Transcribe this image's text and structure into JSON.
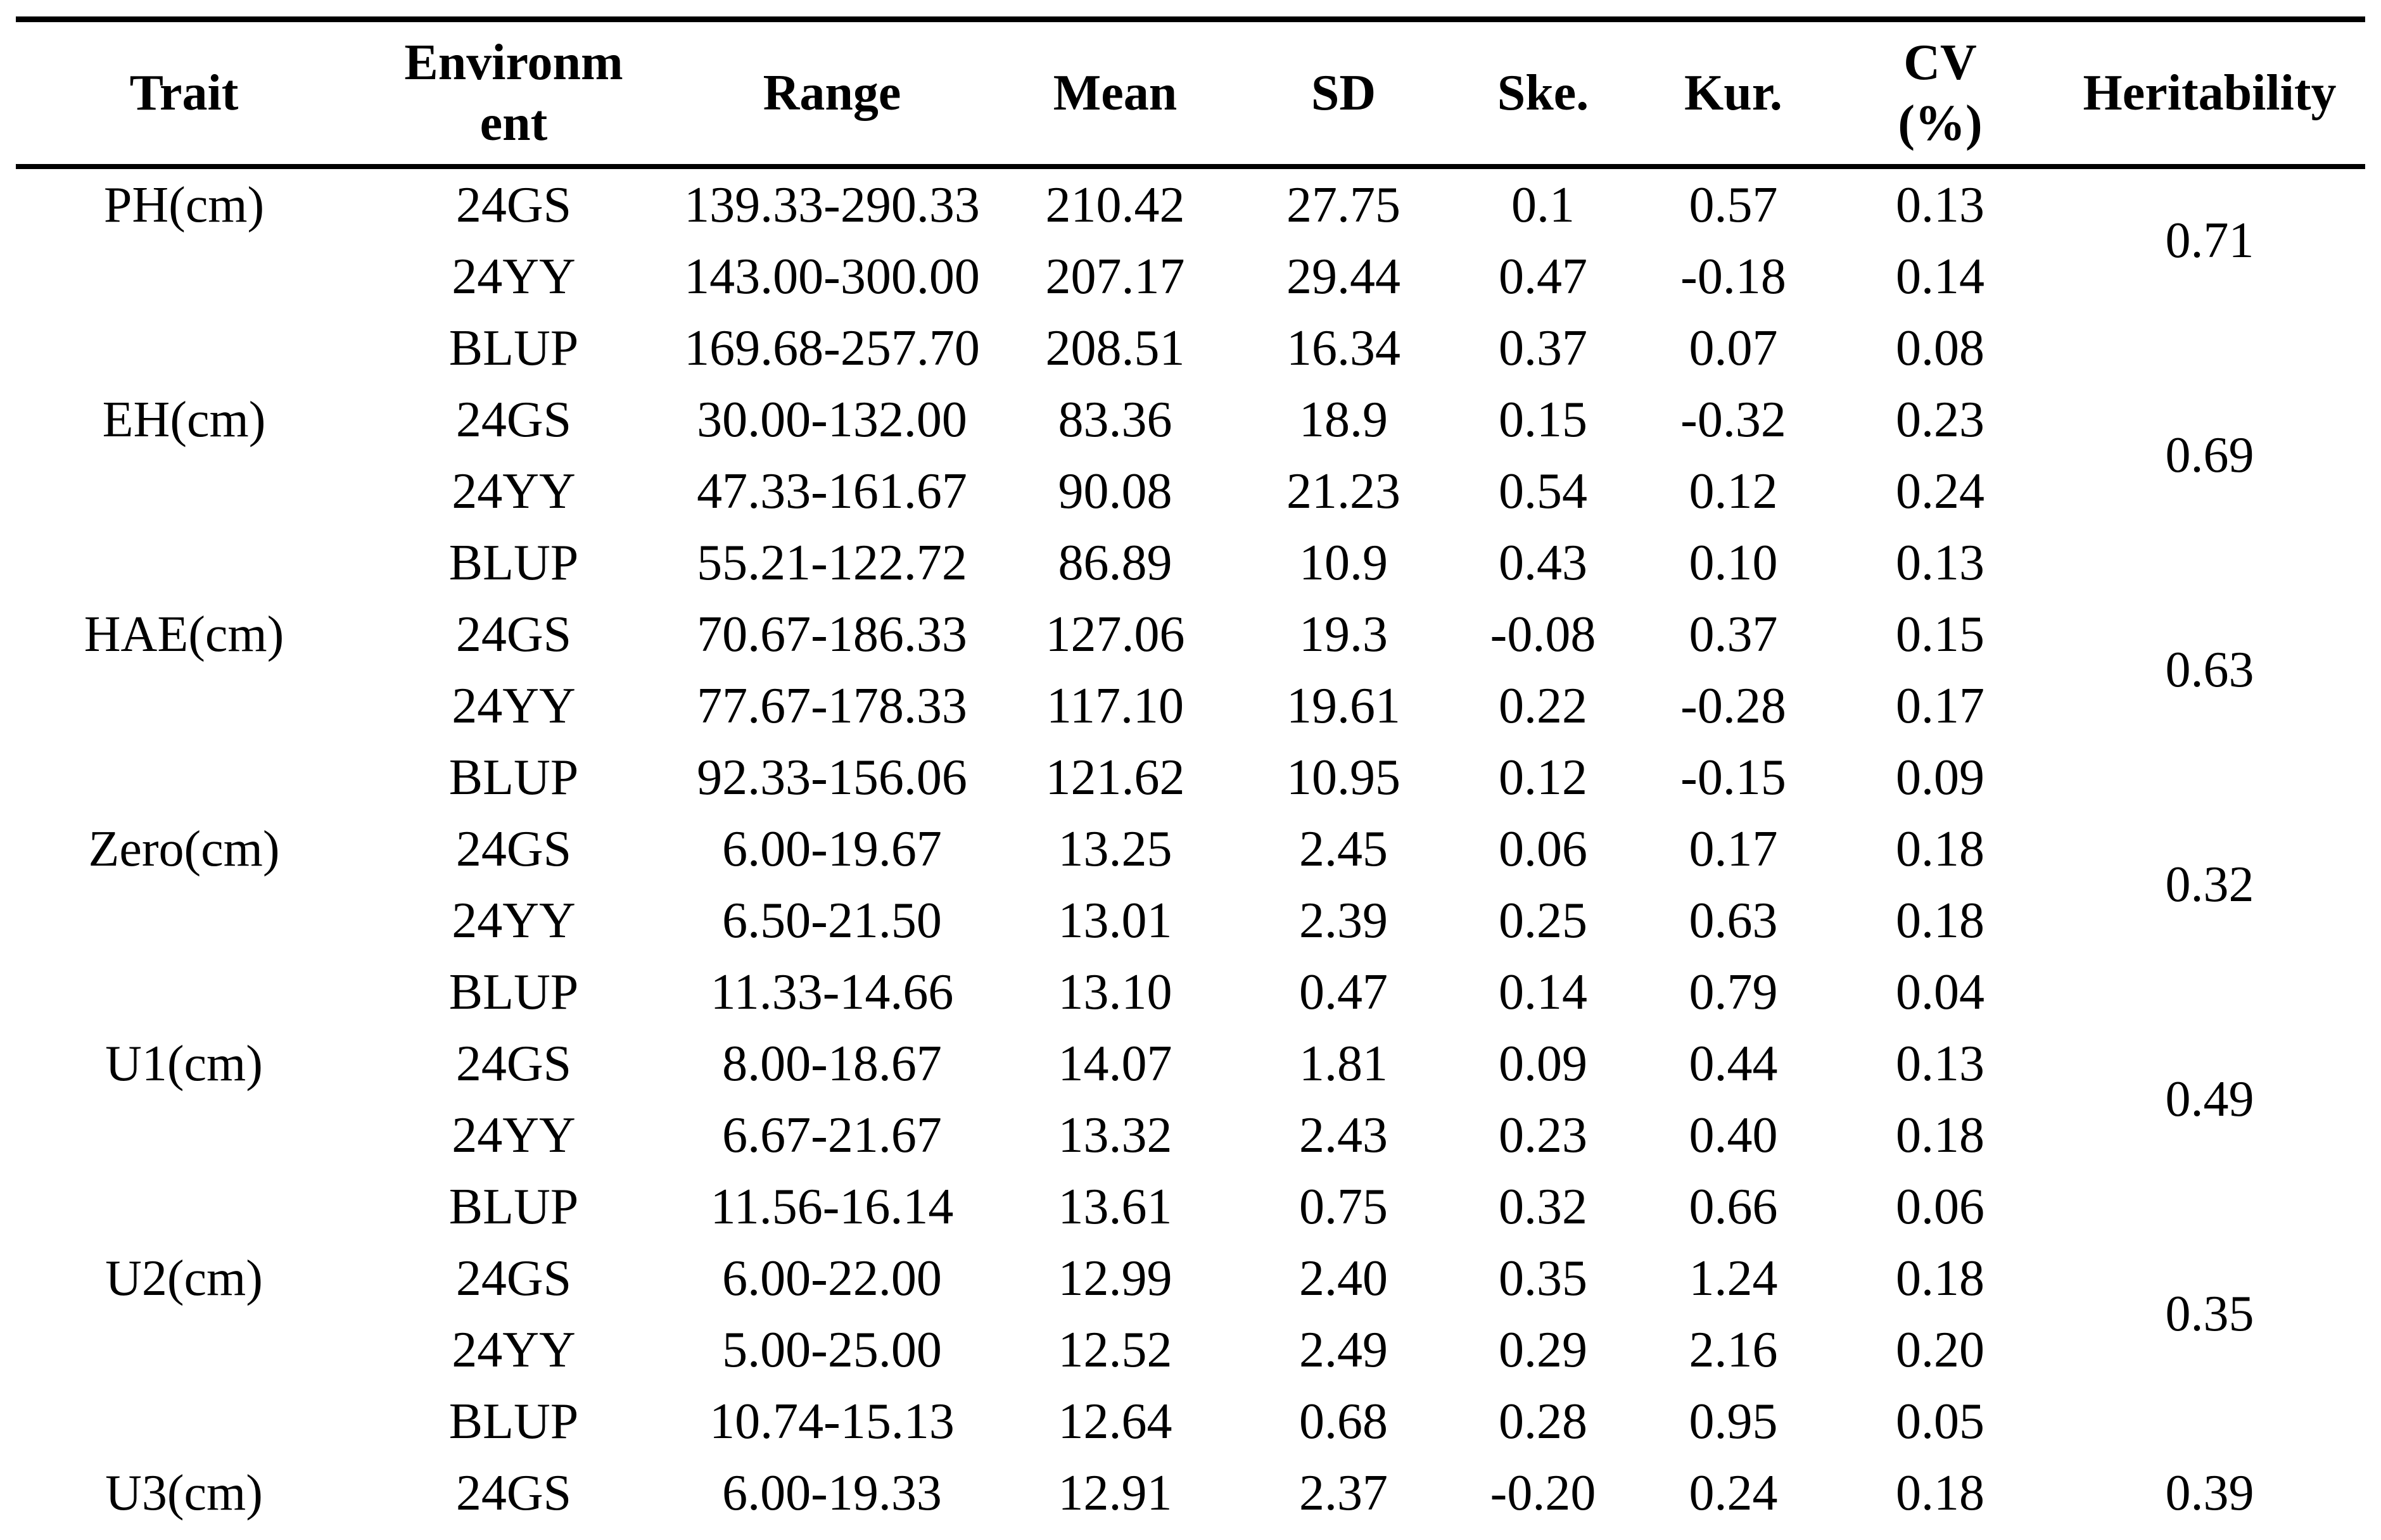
{
  "colors": {
    "background": "#ffffff",
    "text": "#000000",
    "rule": "#000000"
  },
  "table": {
    "headers": [
      {
        "id": "trait",
        "lines": [
          "Trait"
        ]
      },
      {
        "id": "environment",
        "lines": [
          "Environm",
          "ent"
        ]
      },
      {
        "id": "range",
        "lines": [
          "Range"
        ]
      },
      {
        "id": "mean",
        "lines": [
          "Mean"
        ]
      },
      {
        "id": "sd",
        "lines": [
          "SD"
        ]
      },
      {
        "id": "ske",
        "lines": [
          "Ske."
        ]
      },
      {
        "id": "kur",
        "lines": [
          "Kur."
        ]
      },
      {
        "id": "cv",
        "lines": [
          "CV",
          "(%)"
        ]
      },
      {
        "id": "heritability",
        "lines": [
          "Heritability"
        ]
      }
    ],
    "groups": [
      {
        "trait": "PH(cm)",
        "heritability": "0.71",
        "rows": [
          {
            "env": "24GS",
            "range": "139.33-290.33",
            "mean": "210.42",
            "sd": "27.75",
            "ske": "0.1",
            "kur": "0.57",
            "cv": "0.13"
          },
          {
            "env": "24YY",
            "range": "143.00-300.00",
            "mean": "207.17",
            "sd": "29.44",
            "ske": "0.47",
            "kur": "-0.18",
            "cv": "0.14"
          },
          {
            "env": "BLUP",
            "range": "169.68-257.70",
            "mean": "208.51",
            "sd": "16.34",
            "ske": "0.37",
            "kur": "0.07",
            "cv": "0.08"
          }
        ]
      },
      {
        "trait": "EH(cm)",
        "heritability": "0.69",
        "rows": [
          {
            "env": "24GS",
            "range": "30.00-132.00",
            "mean": "83.36",
            "sd": "18.9",
            "ske": "0.15",
            "kur": "-0.32",
            "cv": "0.23"
          },
          {
            "env": "24YY",
            "range": "47.33-161.67",
            "mean": "90.08",
            "sd": "21.23",
            "ske": "0.54",
            "kur": "0.12",
            "cv": "0.24"
          },
          {
            "env": "BLUP",
            "range": "55.21-122.72",
            "mean": "86.89",
            "sd": "10.9",
            "ske": "0.43",
            "kur": "0.10",
            "cv": "0.13"
          }
        ]
      },
      {
        "trait": "HAE(cm)",
        "heritability": "0.63",
        "rows": [
          {
            "env": "24GS",
            "range": "70.67-186.33",
            "mean": "127.06",
            "sd": "19.3",
            "ske": "-0.08",
            "kur": "0.37",
            "cv": "0.15"
          },
          {
            "env": "24YY",
            "range": "77.67-178.33",
            "mean": "117.10",
            "sd": "19.61",
            "ske": "0.22",
            "kur": "-0.28",
            "cv": "0.17"
          },
          {
            "env": "BLUP",
            "range": "92.33-156.06",
            "mean": "121.62",
            "sd": "10.95",
            "ske": "0.12",
            "kur": "-0.15",
            "cv": "0.09"
          }
        ]
      },
      {
        "trait": "Zero(cm)",
        "heritability": "0.32",
        "rows": [
          {
            "env": "24GS",
            "range": "6.00-19.67",
            "mean": "13.25",
            "sd": "2.45",
            "ske": "0.06",
            "kur": "0.17",
            "cv": "0.18"
          },
          {
            "env": "24YY",
            "range": "6.50-21.50",
            "mean": "13.01",
            "sd": "2.39",
            "ske": "0.25",
            "kur": "0.63",
            "cv": "0.18"
          },
          {
            "env": "BLUP",
            "range": "11.33-14.66",
            "mean": "13.10",
            "sd": "0.47",
            "ske": "0.14",
            "kur": "0.79",
            "cv": "0.04"
          }
        ]
      },
      {
        "trait": "U1(cm)",
        "heritability": "0.49",
        "rows": [
          {
            "env": "24GS",
            "range": "8.00-18.67",
            "mean": "14.07",
            "sd": "1.81",
            "ske": "0.09",
            "kur": "0.44",
            "cv": "0.13"
          },
          {
            "env": "24YY",
            "range": "6.67-21.67",
            "mean": "13.32",
            "sd": "2.43",
            "ske": "0.23",
            "kur": "0.40",
            "cv": "0.18"
          },
          {
            "env": "BLUP",
            "range": "11.56-16.14",
            "mean": "13.61",
            "sd": "0.75",
            "ske": "0.32",
            "kur": "0.66",
            "cv": "0.06"
          }
        ]
      },
      {
        "trait": "U2(cm)",
        "heritability": "0.35",
        "rows": [
          {
            "env": "24GS",
            "range": "6.00-22.00",
            "mean": "12.99",
            "sd": "2.40",
            "ske": "0.35",
            "kur": "1.24",
            "cv": "0.18"
          },
          {
            "env": "24YY",
            "range": "5.00-25.00",
            "mean": "12.52",
            "sd": "2.49",
            "ske": "0.29",
            "kur": "2.16",
            "cv": "0.20"
          },
          {
            "env": "BLUP",
            "range": "10.74-15.13",
            "mean": "12.64",
            "sd": "0.68",
            "ske": "0.28",
            "kur": "0.95",
            "cv": "0.05"
          }
        ]
      },
      {
        "trait": "U3(cm)",
        "heritability": "0.39",
        "rows": [
          {
            "env": "24GS",
            "range": "6.00-19.33",
            "mean": "12.91",
            "sd": "2.37",
            "ske": "-0.20",
            "kur": "0.24",
            "cv": "0.18"
          }
        ]
      }
    ]
  }
}
